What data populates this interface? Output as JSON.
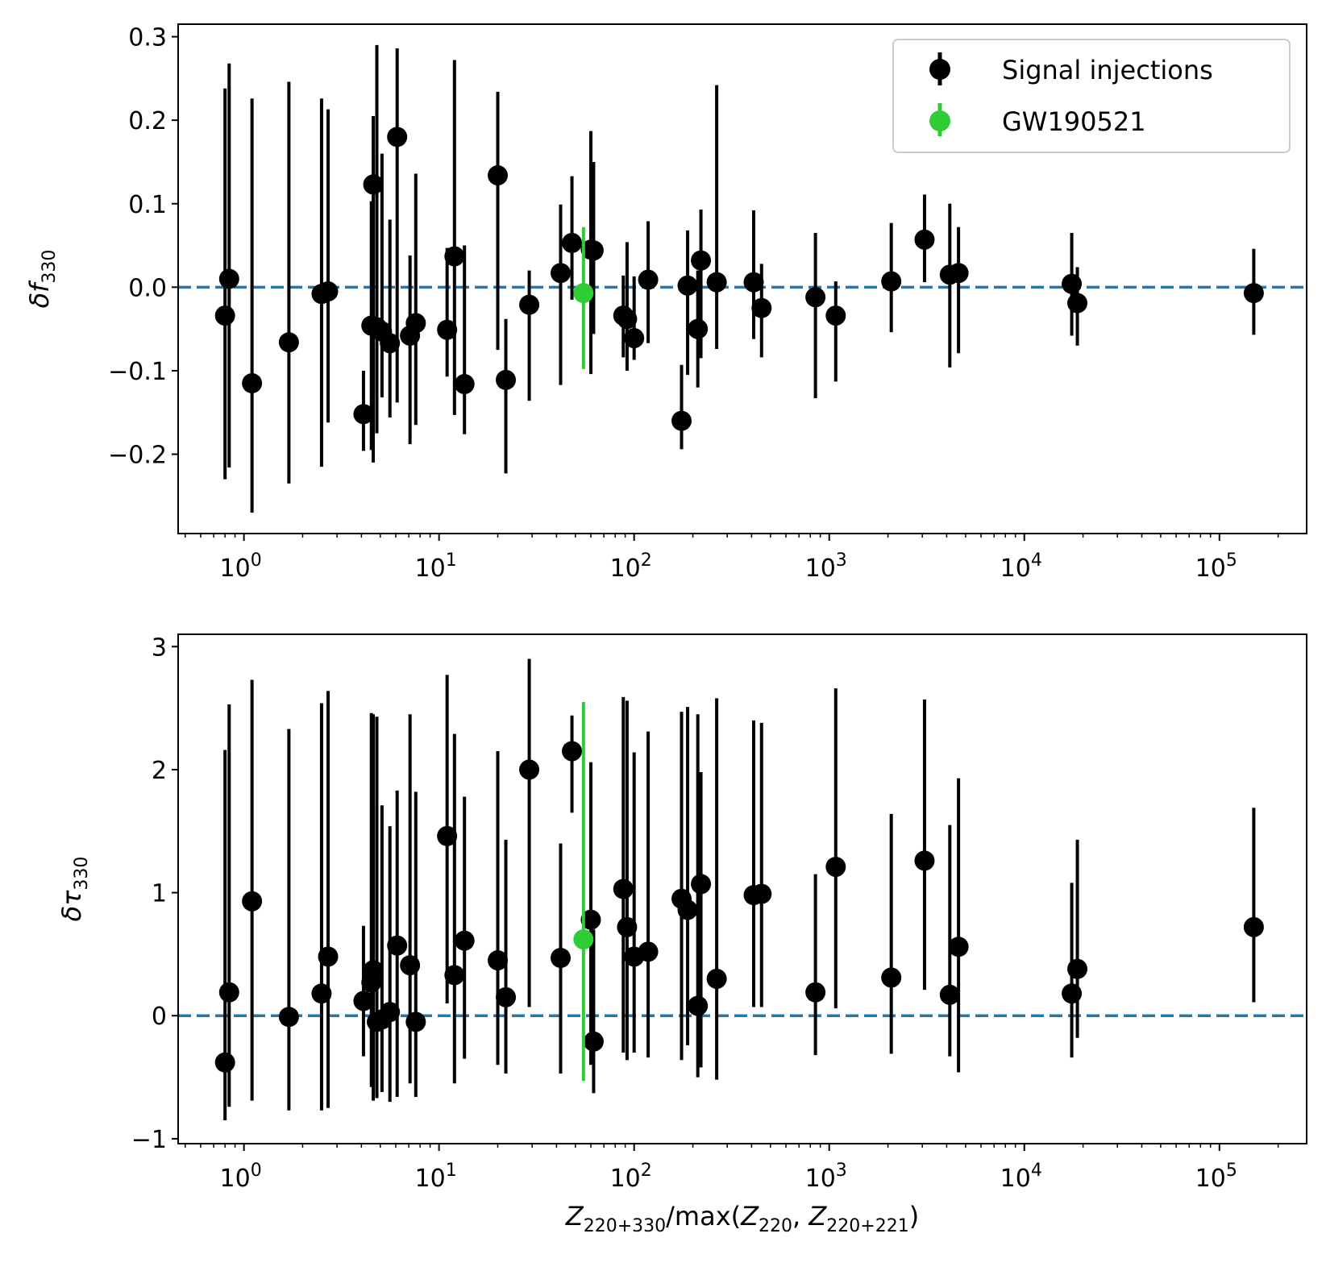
{
  "chart_data": [
    {
      "type": "scatter",
      "panel": "top",
      "xscale": "log",
      "xlim": [
        0.46,
        280000
      ],
      "ylim": [
        -0.295,
        0.315
      ],
      "ylabel_main": "δf",
      "ylabel_sub": "330",
      "yticks": [
        -0.2,
        -0.1,
        0.0,
        0.1,
        0.2,
        0.3
      ],
      "ytick_labels": [
        "−0.2",
        "−0.1",
        "0.0",
        "0.1",
        "0.2",
        "0.3"
      ],
      "reference_line": 0,
      "legend": {
        "position": "top-right",
        "entries": [
          {
            "label": "Signal injections",
            "color": "#000000"
          },
          {
            "label": "GW190521",
            "color": "#2ecc35"
          }
        ]
      },
      "series": [
        {
          "name": "Signal injections",
          "color": "#000000",
          "points": [
            [
              0.8,
              -0.034,
              -0.23,
              0.238
            ],
            [
              0.84,
              0.01,
              -0.216,
              0.268
            ],
            [
              1.1,
              -0.115,
              -0.27,
              0.226
            ],
            [
              1.7,
              -0.066,
              -0.235,
              0.246
            ],
            [
              2.5,
              -0.008,
              -0.215,
              0.226
            ],
            [
              2.7,
              -0.005,
              -0.162,
              0.213
            ],
            [
              4.1,
              -0.152,
              -0.196,
              -0.1
            ],
            [
              4.5,
              -0.046,
              -0.195,
              0.103
            ],
            [
              4.6,
              0.123,
              -0.21,
              0.205
            ],
            [
              4.8,
              -0.048,
              -0.175,
              0.29
            ],
            [
              5.1,
              -0.053,
              -0.132,
              0.16
            ],
            [
              5.6,
              -0.067,
              -0.156,
              0.081
            ],
            [
              6.1,
              0.18,
              -0.138,
              0.286
            ],
            [
              7.1,
              -0.058,
              -0.188,
              0.038
            ],
            [
              7.6,
              -0.043,
              -0.165,
              0.136
            ],
            [
              11.0,
              -0.051,
              -0.107,
              0.047
            ],
            [
              12.0,
              0.037,
              -0.153,
              0.272
            ],
            [
              13.5,
              -0.116,
              -0.176,
              0.05
            ],
            [
              20.0,
              0.134,
              -0.075,
              0.234
            ],
            [
              22.0,
              -0.111,
              -0.223,
              -0.038
            ],
            [
              29.0,
              -0.021,
              -0.136,
              0.02
            ],
            [
              42.0,
              0.017,
              -0.117,
              0.099
            ],
            [
              48.0,
              0.053,
              -0.015,
              0.133
            ],
            [
              60.0,
              0.045,
              -0.104,
              0.187
            ],
            [
              62.0,
              0.044,
              -0.056,
              0.15
            ],
            [
              88.0,
              -0.034,
              -0.084,
              0.014
            ],
            [
              92.0,
              -0.038,
              -0.1,
              0.054
            ],
            [
              100.0,
              -0.061,
              -0.087,
              0.013
            ],
            [
              118.0,
              0.009,
              -0.067,
              0.079
            ],
            [
              175.0,
              -0.16,
              -0.194,
              -0.093
            ],
            [
              188.0,
              0.002,
              -0.105,
              0.068
            ],
            [
              212.0,
              -0.05,
              -0.12,
              0.02
            ],
            [
              220.0,
              0.032,
              -0.085,
              0.093
            ],
            [
              265.0,
              0.006,
              -0.074,
              0.242
            ],
            [
              410.0,
              0.006,
              -0.062,
              0.092
            ],
            [
              450.0,
              -0.025,
              -0.084,
              0.028
            ],
            [
              850.0,
              -0.012,
              -0.133,
              0.065
            ],
            [
              1080.0,
              -0.034,
              -0.113,
              0.007
            ],
            [
              2080.0,
              0.007,
              -0.054,
              0.077
            ],
            [
              3080.0,
              0.057,
              0.006,
              0.111
            ],
            [
              4150.0,
              0.015,
              -0.096,
              0.1
            ],
            [
              4600.0,
              0.017,
              -0.079,
              0.072
            ],
            [
              17500.0,
              0.004,
              -0.058,
              0.065
            ],
            [
              18700.0,
              -0.019,
              -0.07,
              0.024
            ],
            [
              150000.0,
              -0.007,
              -0.057,
              0.046
            ]
          ]
        },
        {
          "name": "GW190521",
          "color": "#2ecc35",
          "points": [
            [
              55.0,
              -0.007,
              -0.098,
              0.072
            ]
          ]
        }
      ]
    },
    {
      "type": "scatter",
      "panel": "bottom",
      "xscale": "log",
      "xlim": [
        0.46,
        280000
      ],
      "ylim": [
        -1.04,
        3.1
      ],
      "ylabel_main": "δτ",
      "ylabel_sub": "330",
      "xlabel": "Z220+330/max(Z220, Z220+221)",
      "yticks": [
        -1,
        0,
        1,
        2,
        3
      ],
      "ytick_labels": [
        "−1",
        "0",
        "1",
        "2",
        "3"
      ],
      "xticks": [
        1,
        10,
        100,
        1000,
        10000,
        100000
      ],
      "xtick_exponents": [
        "0",
        "1",
        "2",
        "3",
        "4",
        "5"
      ],
      "xtick_base": "10",
      "reference_line": 0,
      "series": [
        {
          "name": "Signal injections",
          "color": "#000000",
          "points": [
            [
              0.8,
              -0.38,
              -0.85,
              2.16
            ],
            [
              0.84,
              0.19,
              -0.74,
              2.53
            ],
            [
              1.1,
              0.93,
              -0.69,
              2.73
            ],
            [
              1.7,
              -0.01,
              -0.77,
              2.33
            ],
            [
              2.5,
              0.18,
              -0.77,
              2.54
            ],
            [
              2.7,
              0.48,
              -0.75,
              2.64
            ],
            [
              4.1,
              0.12,
              -0.33,
              0.73
            ],
            [
              4.5,
              0.27,
              -0.58,
              2.46
            ],
            [
              4.6,
              0.37,
              -0.69,
              2.45
            ],
            [
              4.8,
              -0.05,
              -0.67,
              2.43
            ],
            [
              5.1,
              -0.03,
              -0.62,
              1.71
            ],
            [
              5.6,
              0.03,
              -0.7,
              1.54
            ],
            [
              6.1,
              0.57,
              -0.66,
              1.83
            ],
            [
              7.1,
              0.41,
              -0.55,
              2.45
            ],
            [
              7.6,
              -0.05,
              -0.66,
              1.82
            ],
            [
              11.0,
              1.46,
              0.1,
              2.77
            ],
            [
              12.0,
              0.33,
              -0.55,
              2.29
            ],
            [
              13.5,
              0.61,
              -0.35,
              1.78
            ],
            [
              20.0,
              0.45,
              -0.4,
              2.15
            ],
            [
              22.0,
              0.15,
              -0.47,
              1.43
            ],
            [
              29.0,
              2.0,
              0.07,
              2.9
            ],
            [
              42.0,
              0.47,
              -0.47,
              1.4
            ],
            [
              48.0,
              2.15,
              1.65,
              2.44
            ],
            [
              60.0,
              0.78,
              -0.4,
              2.06
            ],
            [
              62.0,
              -0.21,
              -0.63,
              0.7
            ],
            [
              88.0,
              1.03,
              -0.3,
              2.59
            ],
            [
              92.0,
              0.72,
              -0.36,
              2.56
            ],
            [
              100.0,
              0.48,
              -0.3,
              2.14
            ],
            [
              118.0,
              0.52,
              -0.34,
              2.31
            ],
            [
              175.0,
              0.95,
              -0.36,
              2.47
            ],
            [
              188.0,
              0.86,
              -0.24,
              2.51
            ],
            [
              212.0,
              0.08,
              -0.5,
              2.45
            ],
            [
              220.0,
              1.07,
              -0.42,
              1.98
            ],
            [
              265.0,
              0.3,
              -0.52,
              2.58
            ],
            [
              410.0,
              0.98,
              0.07,
              2.4
            ],
            [
              450.0,
              0.99,
              0.07,
              2.38
            ],
            [
              850.0,
              0.19,
              -0.32,
              1.15
            ],
            [
              1080.0,
              1.21,
              0.06,
              2.66
            ],
            [
              2080.0,
              0.31,
              -0.31,
              1.64
            ],
            [
              3080.0,
              1.26,
              0.21,
              2.57
            ],
            [
              4150.0,
              0.17,
              -0.33,
              1.55
            ],
            [
              4600.0,
              0.56,
              -0.46,
              1.93
            ],
            [
              17500.0,
              0.18,
              -0.34,
              1.08
            ],
            [
              18700.0,
              0.38,
              -0.18,
              1.43
            ],
            [
              150000.0,
              0.72,
              0.11,
              1.69
            ]
          ]
        },
        {
          "name": "GW190521",
          "color": "#2ecc35",
          "points": [
            [
              55.0,
              0.62,
              -0.53,
              2.55
            ]
          ]
        }
      ]
    }
  ],
  "colors": {
    "reference_line": "#1f77b4",
    "injections": "#000000",
    "event": "#2ecc35"
  }
}
